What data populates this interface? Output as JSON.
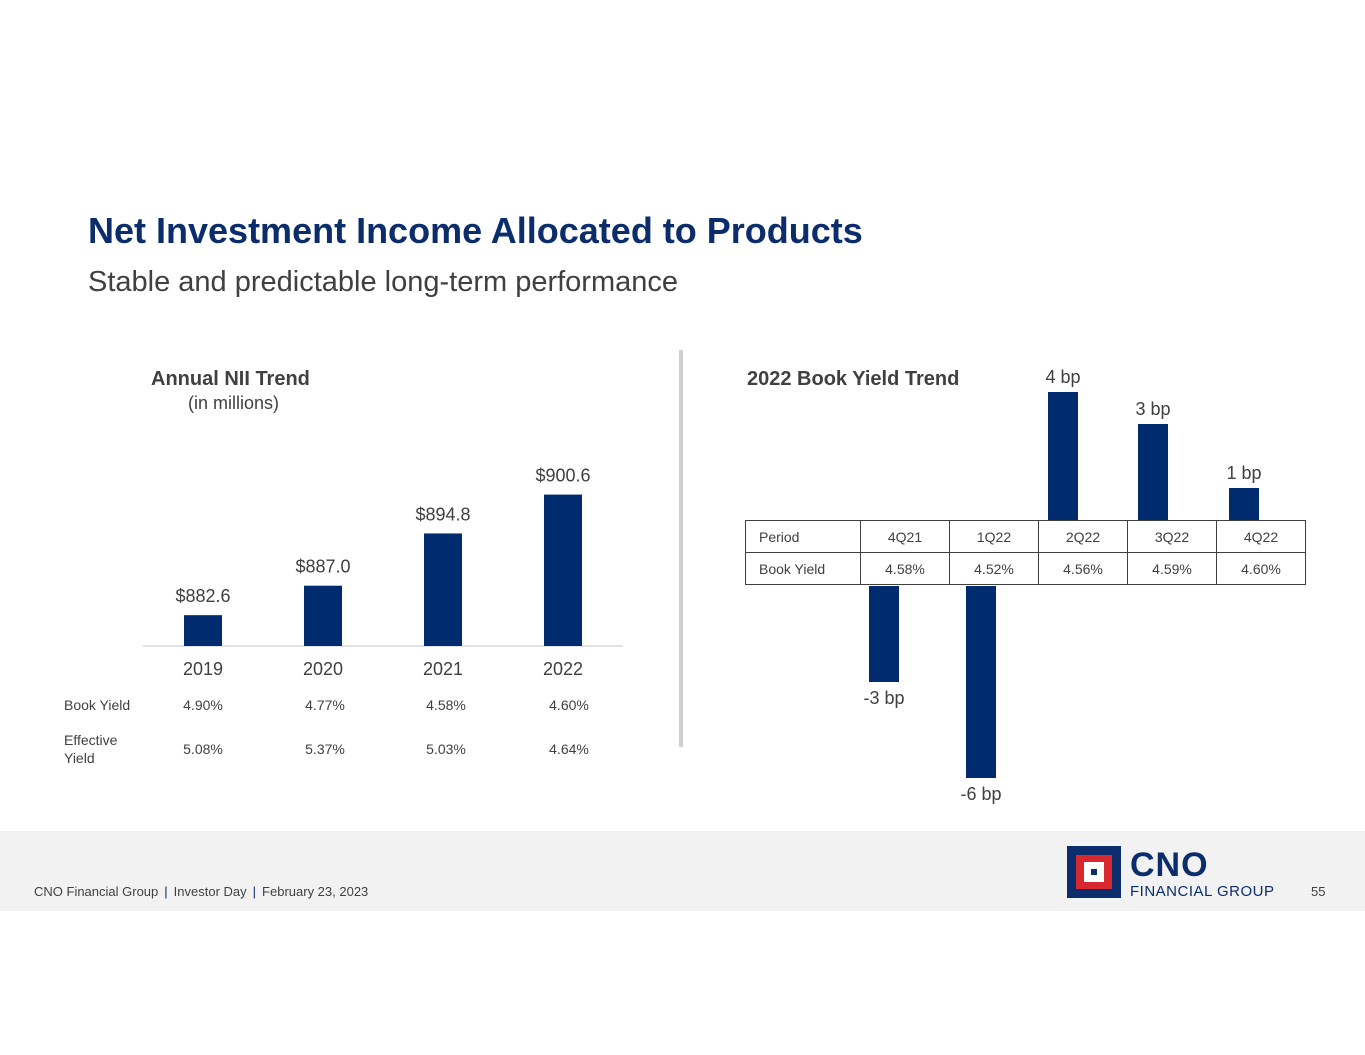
{
  "page": {
    "title": "Net Investment Income Allocated to Products",
    "subtitle": "Stable and predictable long-term performance"
  },
  "chart_data": [
    {
      "type": "bar",
      "title": "Annual NII Trend",
      "subtitle": "(in millions)",
      "categories": [
        "2019",
        "2020",
        "2021",
        "2022"
      ],
      "values": [
        882.6,
        887.0,
        894.8,
        900.6
      ],
      "data_labels": [
        "$882.6",
        "$887.0",
        "$894.8",
        "$900.6"
      ],
      "color": "#002b6e",
      "rows": [
        {
          "label": "Book Yield",
          "values": [
            "4.90%",
            "4.77%",
            "4.58%",
            "4.60%"
          ]
        },
        {
          "label": "Effective Yield",
          "values": [
            "5.08%",
            "5.37%",
            "5.03%",
            "4.64%"
          ]
        }
      ]
    },
    {
      "type": "bar",
      "title": "2022 Book Yield Trend",
      "categories": [
        "4Q21",
        "1Q22",
        "2Q22",
        "3Q22",
        "4Q22"
      ],
      "values": [
        -3,
        -6,
        4,
        3,
        1
      ],
      "data_labels": [
        "-3 bp",
        "-6 bp",
        "4 bp",
        "3 bp",
        "1 bp"
      ],
      "unit": "bp",
      "color": "#002b6e",
      "table": {
        "header_label": "Period",
        "row_label": "Book Yield",
        "values": [
          "4.58%",
          "4.52%",
          "4.56%",
          "4.59%",
          "4.60%"
        ]
      }
    }
  ],
  "footer": {
    "company": "CNO Financial Group",
    "event": "Investor Day",
    "date": "February 23, 2023",
    "page_number": "55"
  },
  "logo": {
    "name": "CNO",
    "tagline": "FINANCIAL GROUP",
    "colors": {
      "navy": "#0b2d6b",
      "red": "#d7282f"
    }
  }
}
